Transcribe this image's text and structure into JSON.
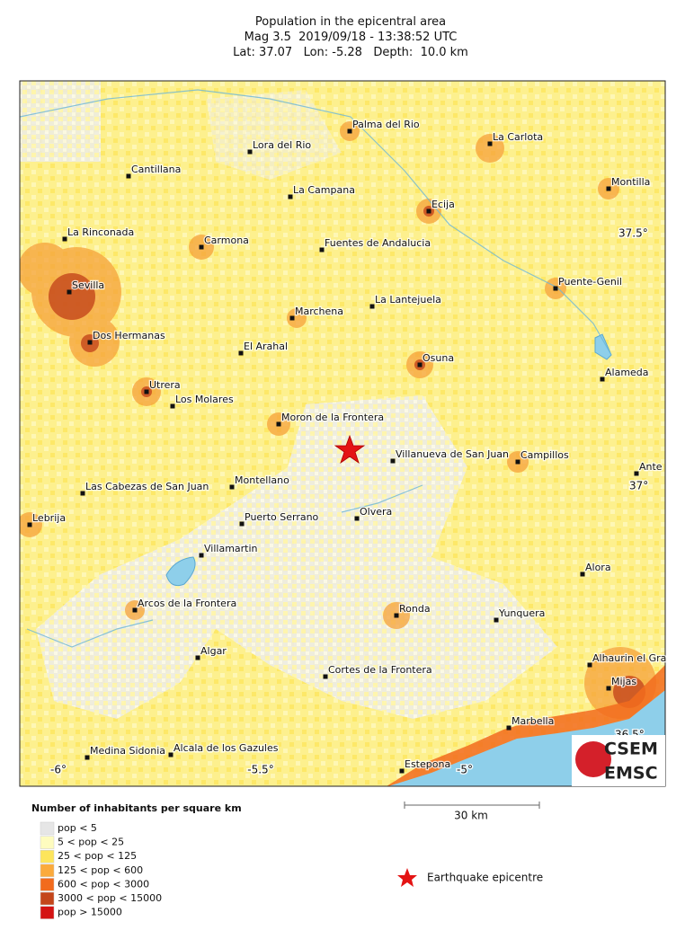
{
  "header": {
    "title": "Population in the epicentral area",
    "event": "Mag 3.5  2019/09/18 - 13:38:52 UTC",
    "location": "Lat: 37.07   Lon: -5.28   Depth:  10.0 km"
  },
  "map": {
    "cities": [
      "Palma del Rio",
      "La Carlota",
      "Lora del Rio",
      "Cantillana",
      "Montilla",
      "La Campana",
      "Ecija",
      "La Rinconada",
      "Carmona",
      "Fuentes de Andalucia",
      "Sevilla",
      "Puente-Genil",
      "La Lantejuela",
      "Marchena",
      "Dos Hermanas",
      "El Arahal",
      "Osuna",
      "Alameda",
      "Utrera",
      "Los Molares",
      "Moron de la Frontera",
      "Villanueva de San Juan",
      "Campillos",
      "Ante",
      "Las Cabezas de San Juan",
      "Montellano",
      "Olvera",
      "Puerto Serrano",
      "Lebrija",
      "Villamartin",
      "Alora",
      "Arcos de la Frontera",
      "Ronda",
      "Yunquera",
      "Algar",
      "Alhaurin el Gra",
      "Cortes de la Frontera",
      "Mijas",
      "Marbella",
      "Medina Sidonia",
      "Alcala de los Gazules",
      "Estepona"
    ],
    "grid_labels": [
      "37.5°",
      "37°",
      "36.5°",
      "-6°",
      "-5.5°",
      "-5°"
    ]
  },
  "legend": {
    "title": "Number of inhabitants per square km",
    "items": [
      {
        "label": "pop < 5",
        "color": "#e6e6e6"
      },
      {
        "label": "5 < pop < 25",
        "color": "#fefcbf"
      },
      {
        "label": "25 < pop < 125",
        "color": "#fde55c"
      },
      {
        "label": "125 < pop < 600",
        "color": "#fbaa3c"
      },
      {
        "label": "600 < pop < 3000",
        "color": "#f26b1d"
      },
      {
        "label": "3000 < pop < 15000",
        "color": "#c4461b"
      },
      {
        "label": "pop > 15000",
        "color": "#d41313"
      }
    ]
  },
  "scale_bar": "30 km",
  "epicentre_label": "Earthquake epicentre",
  "logo": {
    "top": "CSEM",
    "bottom": "EMSC"
  }
}
